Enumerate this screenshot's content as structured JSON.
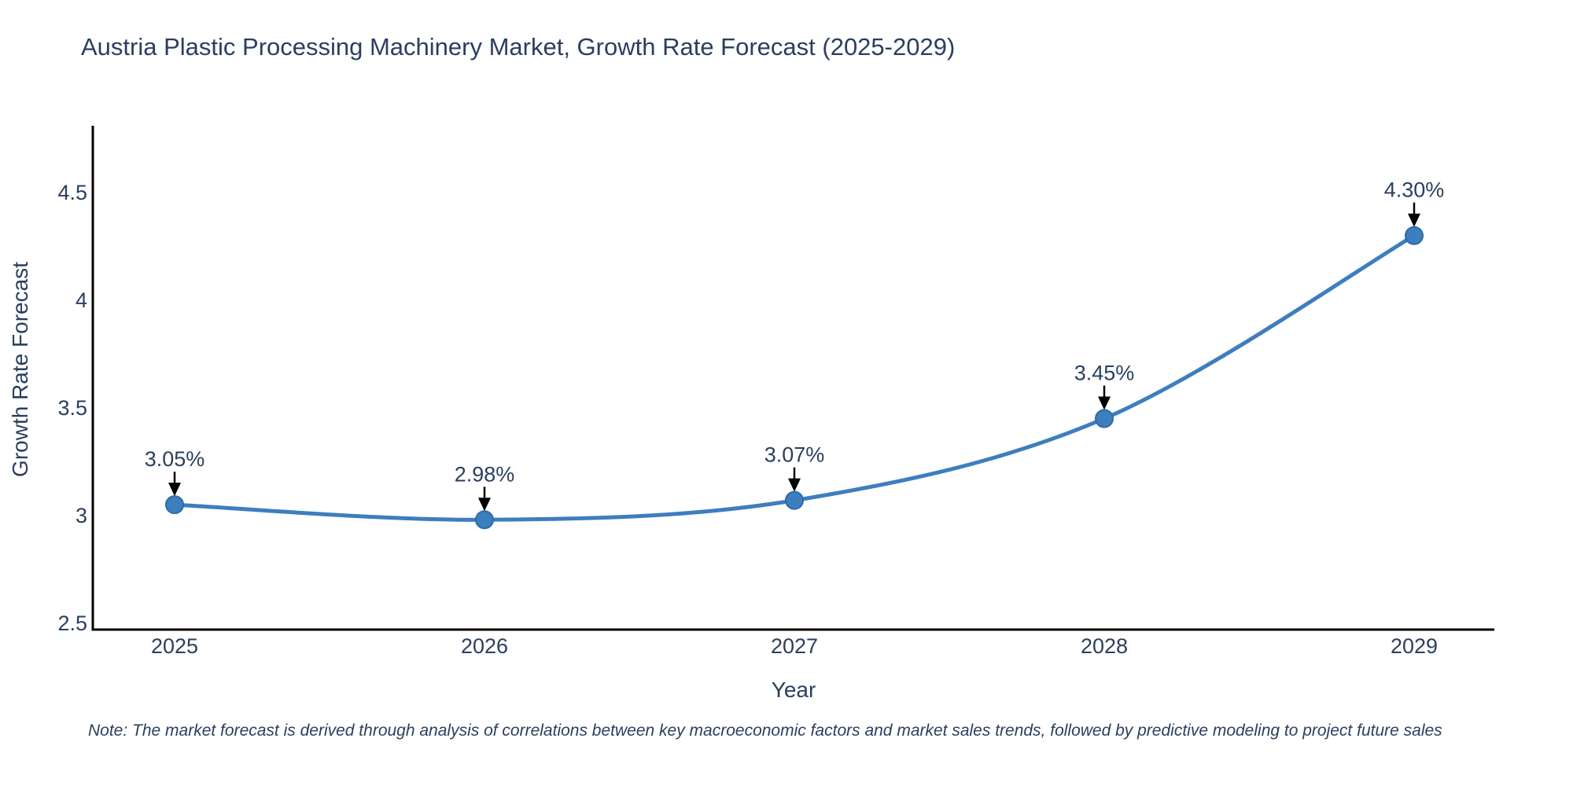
{
  "chart_data": {
    "type": "line",
    "title": "Austria Plastic Processing Machinery Market, Growth Rate Forecast (2025-2029)",
    "xlabel": "Year",
    "ylabel": "Growth Rate Forecast",
    "categories": [
      "2025",
      "2026",
      "2027",
      "2028",
      "2029"
    ],
    "series": [
      {
        "name": "Growth Rate Forecast",
        "values": [
          3.05,
          2.98,
          3.07,
          3.45,
          4.3
        ],
        "point_labels": [
          "3.05%",
          "2.98%",
          "3.07%",
          "3.45%",
          "4.30%"
        ]
      }
    ],
    "yticks": {
      "values": [
        2.5,
        3,
        3.5,
        4,
        4.5
      ],
      "labels": [
        "2.5",
        "3",
        "3.5",
        "4",
        "4.5"
      ]
    },
    "ylim": [
      2.47,
      4.81
    ],
    "grid": false,
    "legend": "none",
    "line_shape": "spline"
  },
  "note": "Note: The market forecast is derived through analysis of correlations between key macroeconomic factors and market sales trends, followed by predictive modeling to project future sales",
  "colors": {
    "line": "#3d7ebf",
    "marker": "#3d7ebf",
    "marker_edge": "#2e6ca6",
    "text": "#2a3f5f",
    "axis": "#000000",
    "arrow": "#000000",
    "background": "#ffffff"
  }
}
